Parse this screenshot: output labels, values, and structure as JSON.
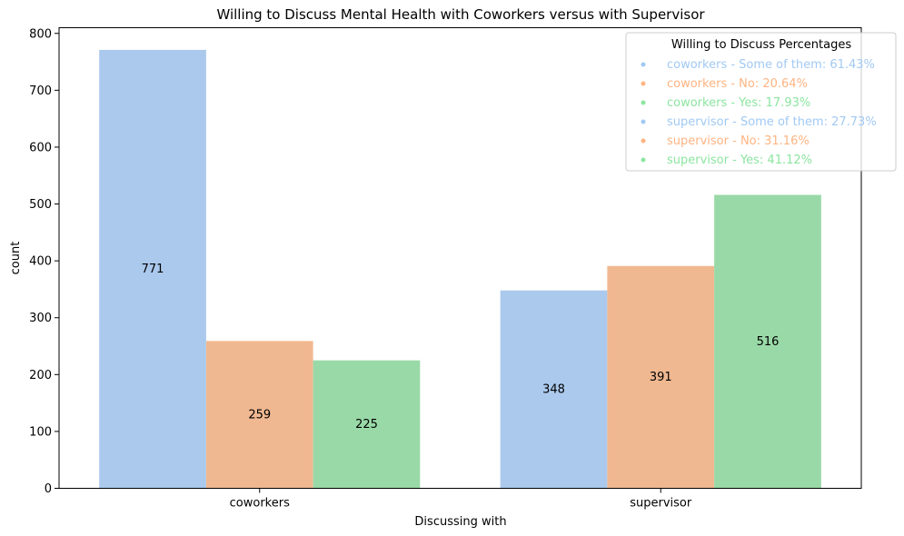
{
  "chart_data": {
    "type": "bar",
    "title": "Willing to Discuss Mental Health with Coworkers versus with Supervisor",
    "xlabel": "Discussing with",
    "ylabel": "count",
    "categories": [
      "coworkers",
      "supervisor"
    ],
    "ylim": [
      0,
      810
    ],
    "yticks": [
      0,
      100,
      200,
      300,
      400,
      500,
      600,
      700,
      800
    ],
    "grid": false,
    "series": [
      {
        "key": "some",
        "values": [
          771,
          348
        ],
        "labels": [
          "771",
          "348"
        ],
        "color": "#abc9ed"
      },
      {
        "key": "no",
        "values": [
          259,
          391
        ],
        "labels": [
          "259",
          "391"
        ],
        "color": "#f0b891"
      },
      {
        "key": "yes",
        "values": [
          225,
          516
        ],
        "labels": [
          "225",
          "516"
        ],
        "color": "#99d9a7"
      }
    ],
    "legend": {
      "title": "Willing to Discuss Percentages",
      "placement": "top-right",
      "entries": [
        {
          "text": "coworkers - Some of them: 61.43%",
          "color": "#a1c9f4"
        },
        {
          "text": "coworkers - No: 20.64%",
          "color": "#ffb482"
        },
        {
          "text": "coworkers - Yes: 17.93%",
          "color": "#8de5a1"
        },
        {
          "text": "supervisor - Some of them: 27.73%",
          "color": "#a1c9f4"
        },
        {
          "text": "supervisor - No: 31.16%",
          "color": "#ffb482"
        },
        {
          "text": "supervisor - Yes: 41.12%",
          "color": "#8de5a1"
        }
      ]
    }
  }
}
